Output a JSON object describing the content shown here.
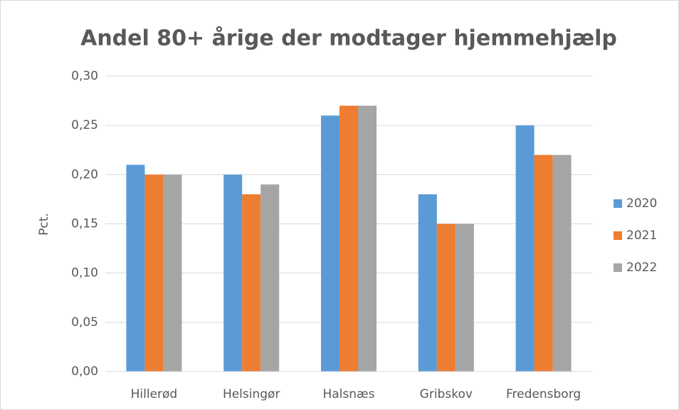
{
  "chart_data": {
    "type": "bar",
    "title": "Andel 80+ årige der modtager hjemmehjælp",
    "y_label": "Pct.",
    "categories": [
      "Hillerød",
      "Helsingør",
      "Halsnæs",
      "Gribskov",
      "Fredensborg"
    ],
    "series": [
      {
        "name": "2020",
        "color": "#5b9bd5",
        "values": [
          0.21,
          0.2,
          0.26,
          0.18,
          0.25
        ]
      },
      {
        "name": "2021",
        "color": "#ed7d31",
        "values": [
          0.2,
          0.18,
          0.27,
          0.15,
          0.22
        ]
      },
      {
        "name": "2022",
        "color": "#a5a5a5",
        "values": [
          0.2,
          0.19,
          0.27,
          0.15,
          0.22
        ]
      }
    ],
    "ylim": [
      0,
      0.3
    ],
    "yticks": [
      {
        "value": 0,
        "label": "0,00"
      },
      {
        "value": 0.05,
        "label": "0,05"
      },
      {
        "value": 0.1,
        "label": "0,10"
      },
      {
        "value": 0.15,
        "label": "0,15"
      },
      {
        "value": 0.2,
        "label": "0,20"
      },
      {
        "value": 0.25,
        "label": "0,25"
      },
      {
        "value": 0.3,
        "label": "0,30"
      }
    ],
    "grid": true,
    "legend": "right"
  }
}
